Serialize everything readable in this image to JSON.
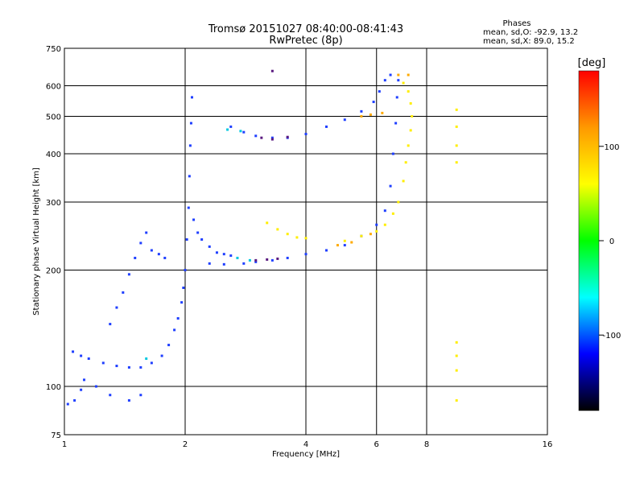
{
  "chart_data": {
    "type": "scatter",
    "title": "Tromsø 20151027 08:40:00-08:41:43",
    "subtitle": "RwPretec (8p)",
    "stats": {
      "header": "Phases",
      "line1": "mean, sd,O: -92.9, 13.2",
      "line2": "mean, sd,X:  89.0, 15.2"
    },
    "xlabel": "Frequency [MHz]",
    "ylabel": "Stationary phase Virtual Height [km]",
    "x_scale": "log",
    "y_scale": "log",
    "xlim": [
      1,
      16
    ],
    "ylim": [
      75,
      750
    ],
    "x_ticks": [
      1,
      2,
      4,
      6,
      8,
      16
    ],
    "y_ticks": [
      75,
      100,
      200,
      300,
      400,
      500,
      600,
      750
    ],
    "grid": true,
    "colorbar": {
      "label": "[deg]",
      "range": [
        -180,
        180
      ],
      "ticks": [
        100,
        0,
        -100
      ],
      "colors": [
        "#ff0000",
        "#ff9900",
        "#ffff00",
        "#00ff00",
        "#00ffff",
        "#0000ff",
        "#000000"
      ]
    },
    "series": [
      {
        "color": "#1f3fff",
        "points": [
          [
            1.02,
            90
          ],
          [
            1.06,
            92
          ],
          [
            1.1,
            98
          ],
          [
            1.12,
            104
          ],
          [
            1.2,
            100
          ],
          [
            1.3,
            95
          ],
          [
            1.45,
            92
          ],
          [
            1.55,
            95
          ],
          [
            1.05,
            123
          ],
          [
            1.1,
            120
          ],
          [
            1.15,
            118
          ],
          [
            1.25,
            115
          ],
          [
            1.35,
            113
          ],
          [
            1.45,
            112
          ],
          [
            1.55,
            112
          ],
          [
            1.65,
            115
          ],
          [
            1.75,
            120
          ],
          [
            1.82,
            128
          ],
          [
            1.88,
            140
          ],
          [
            1.92,
            150
          ],
          [
            1.96,
            165
          ],
          [
            1.98,
            180
          ],
          [
            2.0,
            200
          ],
          [
            2.02,
            240
          ],
          [
            2.04,
            290
          ],
          [
            2.05,
            350
          ],
          [
            2.06,
            420
          ],
          [
            2.07,
            480
          ],
          [
            2.08,
            560
          ],
          [
            1.3,
            145
          ],
          [
            1.35,
            160
          ],
          [
            1.4,
            175
          ],
          [
            1.45,
            195
          ],
          [
            1.5,
            215
          ],
          [
            1.55,
            235
          ],
          [
            1.6,
            250
          ],
          [
            1.65,
            225
          ],
          [
            1.72,
            220
          ],
          [
            1.78,
            215
          ],
          [
            2.1,
            270
          ],
          [
            2.15,
            250
          ],
          [
            2.2,
            240
          ],
          [
            2.3,
            230
          ],
          [
            2.4,
            222
          ],
          [
            2.5,
            220
          ],
          [
            2.6,
            218
          ],
          [
            2.3,
            208
          ],
          [
            2.5,
            207
          ],
          [
            2.8,
            208
          ],
          [
            3.0,
            210
          ],
          [
            3.3,
            212
          ],
          [
            3.6,
            215
          ],
          [
            4.0,
            220
          ],
          [
            4.5,
            225
          ],
          [
            5.0,
            232
          ],
          [
            5.5,
            245
          ],
          [
            6.0,
            262
          ],
          [
            6.3,
            285
          ],
          [
            6.5,
            330
          ],
          [
            6.6,
            400
          ],
          [
            6.7,
            480
          ],
          [
            6.75,
            560
          ],
          [
            6.8,
            620
          ],
          [
            2.6,
            470
          ],
          [
            2.8,
            455
          ],
          [
            3.0,
            445
          ],
          [
            3.3,
            440
          ],
          [
            3.6,
            440
          ],
          [
            4.0,
            450
          ],
          [
            4.5,
            470
          ],
          [
            5.0,
            490
          ],
          [
            5.5,
            515
          ],
          [
            5.9,
            545
          ],
          [
            6.1,
            580
          ],
          [
            6.3,
            620
          ],
          [
            6.5,
            640
          ]
        ]
      },
      {
        "color": "#ffee00",
        "points": [
          [
            3.2,
            265
          ],
          [
            3.4,
            255
          ],
          [
            3.6,
            248
          ],
          [
            3.8,
            243
          ],
          [
            4.0,
            242
          ],
          [
            5.0,
            238
          ],
          [
            5.5,
            245
          ],
          [
            6.0,
            252
          ],
          [
            6.3,
            262
          ],
          [
            6.6,
            280
          ],
          [
            6.8,
            300
          ],
          [
            7.0,
            340
          ],
          [
            7.1,
            380
          ],
          [
            7.2,
            420
          ],
          [
            7.3,
            460
          ],
          [
            7.35,
            500
          ],
          [
            7.3,
            540
          ],
          [
            7.2,
            580
          ],
          [
            7.0,
            610
          ],
          [
            9.5,
            520
          ],
          [
            9.5,
            470
          ],
          [
            9.5,
            420
          ],
          [
            9.5,
            380
          ],
          [
            9.5,
            130
          ],
          [
            9.5,
            120
          ],
          [
            9.5,
            110
          ],
          [
            9.5,
            92
          ]
        ]
      },
      {
        "color": "#ffaa00",
        "points": [
          [
            5.5,
            500
          ],
          [
            5.8,
            505
          ],
          [
            6.2,
            510
          ],
          [
            6.8,
            640
          ],
          [
            7.2,
            640
          ],
          [
            4.8,
            232
          ],
          [
            5.2,
            236
          ],
          [
            5.8,
            248
          ]
        ]
      },
      {
        "color": "#5a1a80",
        "points": [
          [
            3.0,
            212
          ],
          [
            3.2,
            213
          ],
          [
            3.4,
            214
          ],
          [
            3.1,
            440
          ],
          [
            3.3,
            436
          ],
          [
            3.6,
            442
          ],
          [
            3.3,
            655
          ]
        ]
      },
      {
        "color": "#00c8e0",
        "points": [
          [
            2.7,
            215
          ],
          [
            2.9,
            212
          ],
          [
            1.6,
            118
          ],
          [
            2.55,
            462
          ],
          [
            2.75,
            458
          ]
        ]
      }
    ]
  }
}
